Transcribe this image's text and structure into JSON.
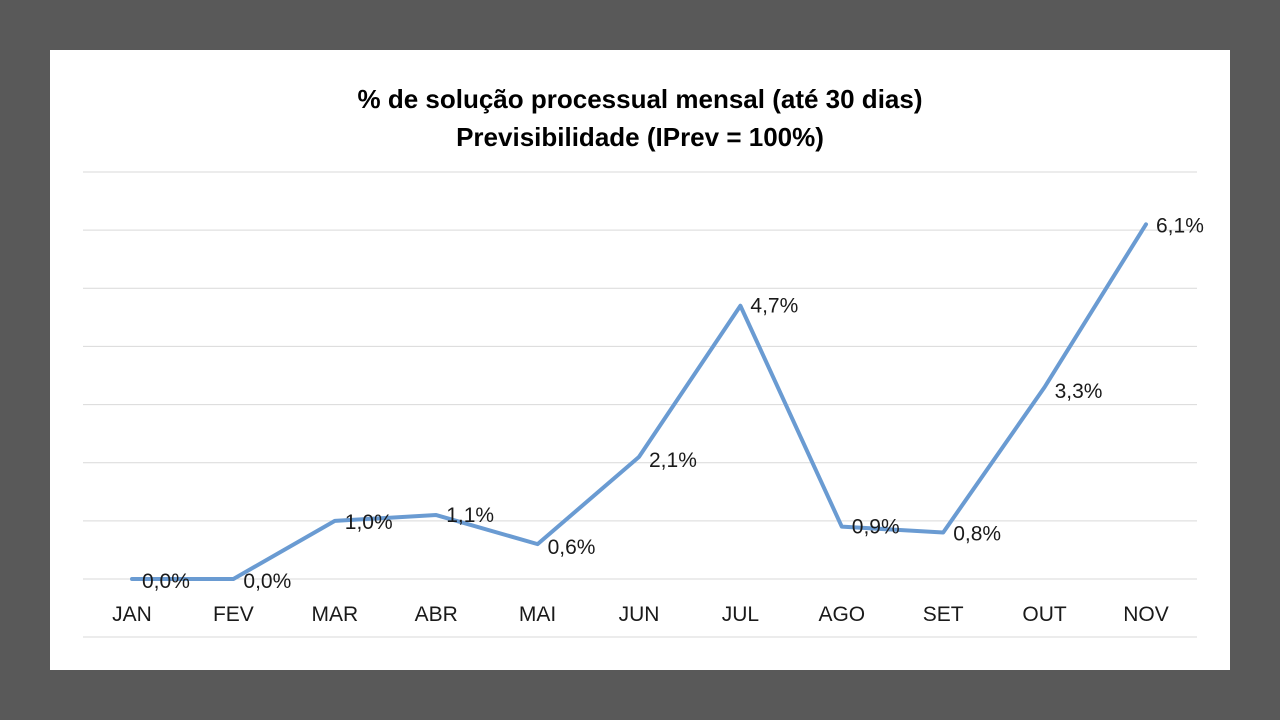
{
  "chart_data": {
    "type": "line",
    "title": "% de solução processual mensal (até 30 dias)",
    "subtitle": "Previsibilidade (IPrev = 100%)",
    "xlabel": "",
    "ylabel": "",
    "categories": [
      "JAN",
      "FEV",
      "MAR",
      "ABR",
      "MAI",
      "JUN",
      "JUL",
      "AGO",
      "SET",
      "OUT",
      "NOV"
    ],
    "series": [
      {
        "values": [
          0.0,
          0.0,
          1.0,
          1.1,
          0.6,
          2.1,
          4.7,
          0.9,
          0.8,
          3.3,
          6.1
        ],
        "labels": [
          "0,0%",
          "0,0%",
          "1,0%",
          "1,1%",
          "0,6%",
          "2,1%",
          "4,7%",
          "0,9%",
          "0,8%",
          "3,3%",
          "6,1%"
        ],
        "color": "#6a9bd2"
      }
    ],
    "ylim": [
      0,
      7
    ],
    "y_axis_labels_shown": false,
    "grid": true,
    "legend": "none"
  },
  "colors": {
    "background_frame": "#595959",
    "plot_background": "#ffffff",
    "gridline": "#d9d9d9",
    "line": "#6a9bd2"
  }
}
